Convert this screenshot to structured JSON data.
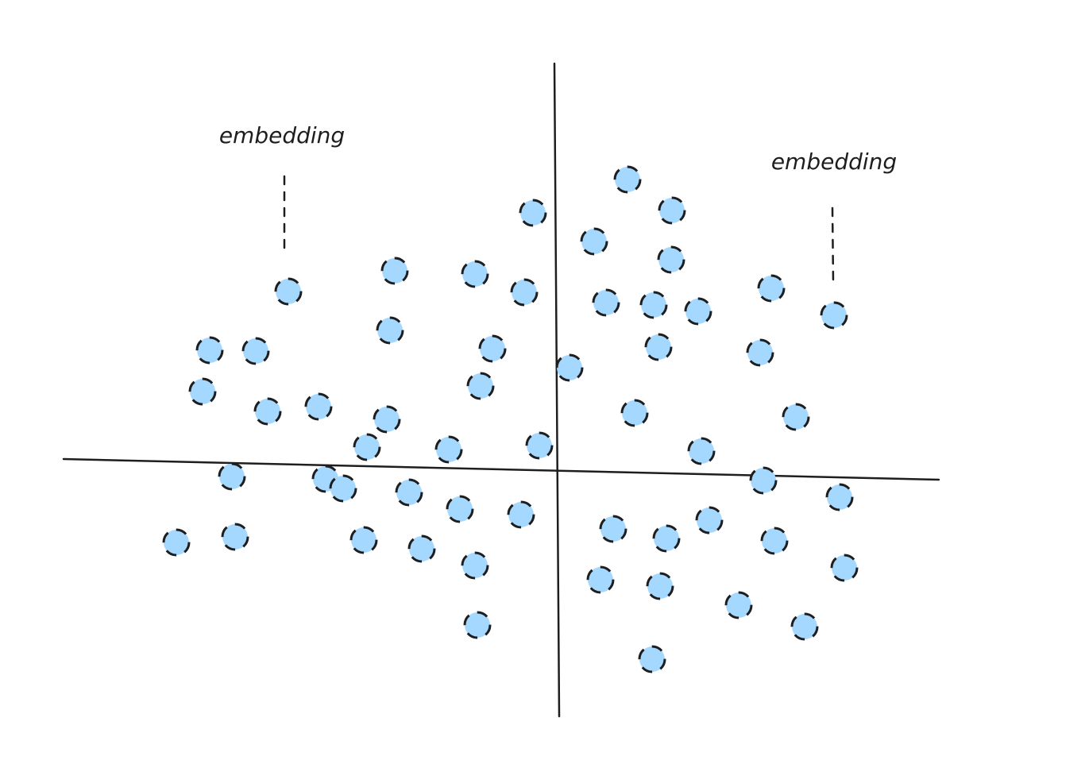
{
  "annotations": [
    {
      "label": "embedding"
    },
    {
      "label": "embedding"
    }
  ]
}
